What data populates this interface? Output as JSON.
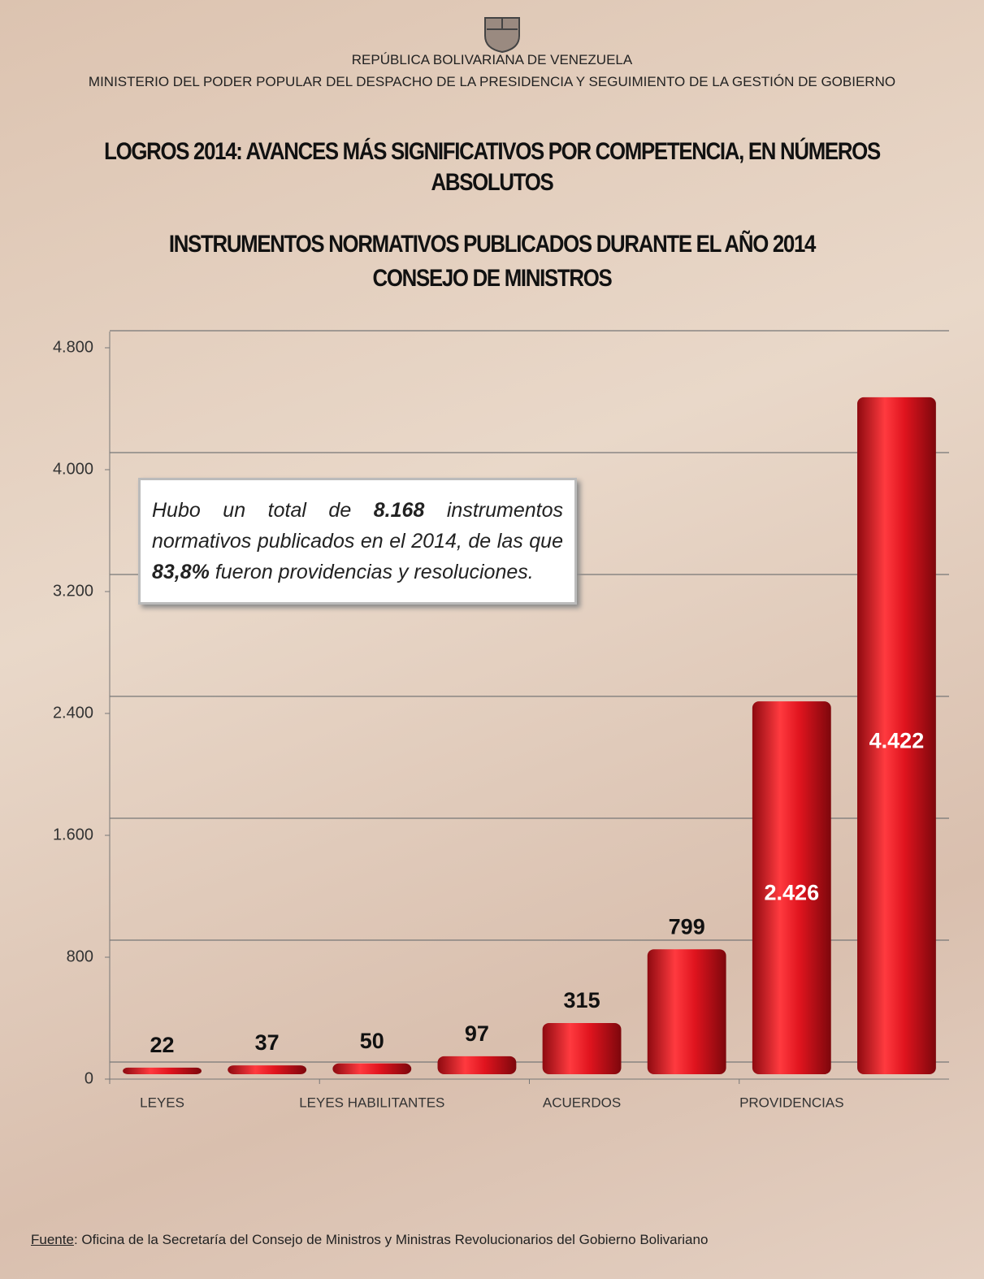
{
  "header": {
    "country": "REPÚBLICA BOLIVARIANA DE VENEZUELA",
    "ministry": "MINISTERIO  DEL PODER POPULAR DEL DESPACHO DE LA PRESIDENCIA  Y SEGUIMIENTO  DE LA GESTIÓN  DE GOBIERNO"
  },
  "chart_data": {
    "type": "bar",
    "title": "LOGROS 2014: AVANCES MÁS SIGNIFICATIVOS POR COMPETENCIA, EN NÚMEROS ABSOLUTOS",
    "subtitle": [
      "INSTRUMENTOS NORMATIVOS PUBLICADOS DURANTE EL AÑO 2014",
      "CONSEJO DE MINISTROS"
    ],
    "categories": [
      "LEYES",
      null,
      "LEYES HABILITANTES",
      null,
      "ACUERDOS",
      null,
      "PROVIDENCIAS",
      null
    ],
    "values": [
      22,
      37,
      50,
      97,
      315,
      799,
      2426,
      4422
    ],
    "value_labels": [
      "22",
      "37",
      "50",
      "97",
      "315",
      "799",
      "2.426",
      "4.422"
    ],
    "color": "#e0141e",
    "ylim": [
      0,
      4800
    ],
    "yticks": [
      0,
      800,
      {
        "value": 1600,
        "label": "1.600"
      },
      {
        "value": 2400,
        "label": "2.400"
      },
      {
        "value": 3200,
        "label": "3.200"
      },
      {
        "value": 4000,
        "label": "4.000"
      },
      {
        "value": 4800,
        "label": "4.800"
      }
    ],
    "grid": true,
    "annotation": [
      "Hubo un total de ",
      "8.168",
      " instrumentos normativos publicados en el 2014, de las que ",
      "83,8%",
      " fueron providencias y resoluciones."
    ]
  },
  "source": {
    "label": "Fuente",
    "text": ": Oficina de la Secretaría del Consejo de Ministros y Ministras Revolucionarios del Gobierno Bolivariano"
  }
}
